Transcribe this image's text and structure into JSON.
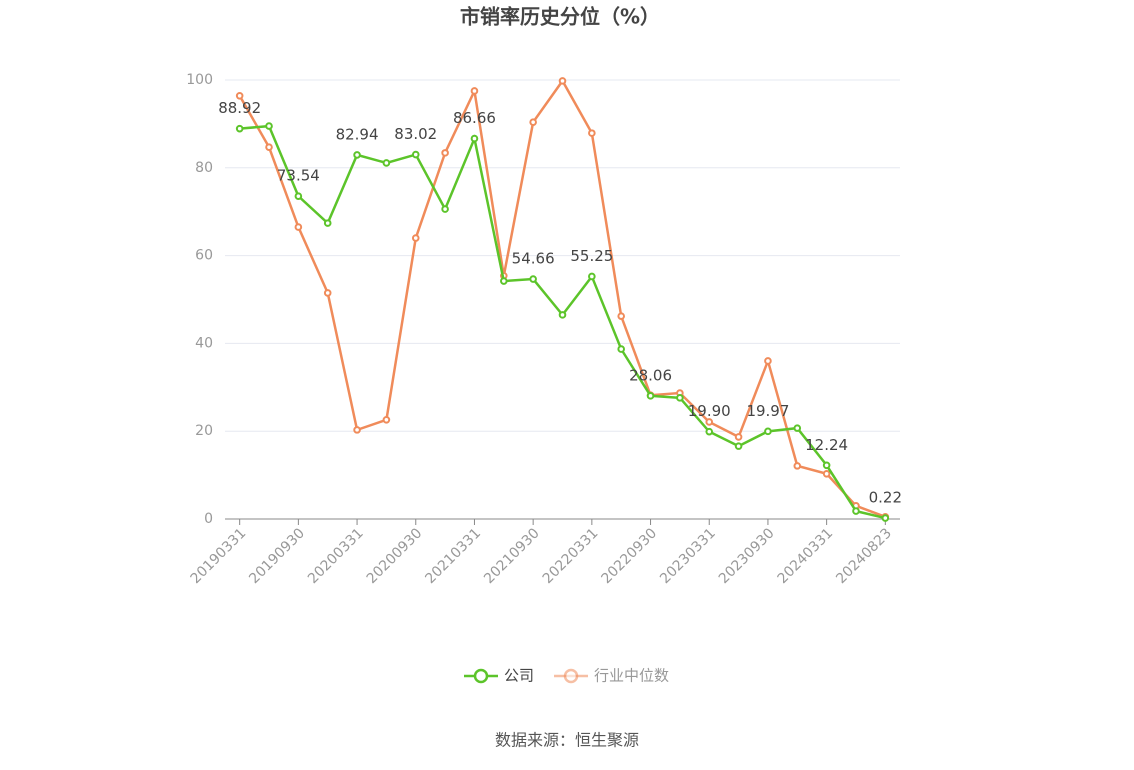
{
  "chart_data": {
    "type": "line",
    "title": "市销率历史分位（%）",
    "categories": [
      "20190331",
      null,
      "20190930",
      null,
      "20200331",
      null,
      "20200930",
      null,
      "20210331",
      null,
      "20210930",
      null,
      "20220331",
      null,
      "20220930",
      null,
      "20230331",
      null,
      "20230930",
      null,
      "20240331",
      null,
      "20240823"
    ],
    "series": [
      {
        "name": "公司",
        "color": "#5cc42a",
        "values": [
          88.92,
          89.5,
          73.54,
          67.4,
          82.94,
          81.1,
          83.02,
          70.6,
          86.66,
          54.2,
          54.66,
          46.5,
          55.25,
          38.7,
          28.06,
          27.6,
          19.9,
          16.6,
          19.97,
          20.7,
          12.24,
          1.8,
          0.22
        ],
        "value_labels": [
          "88.92",
          null,
          "73.54",
          null,
          "82.94",
          null,
          "83.02",
          null,
          "86.66",
          null,
          "54.66",
          null,
          "55.25",
          null,
          "28.06",
          null,
          "19.90",
          null,
          "19.97",
          null,
          "12.24",
          null,
          "0.22"
        ]
      },
      {
        "name": "行业中位数",
        "color": "#f08b5a",
        "values": [
          96.4,
          84.7,
          66.5,
          51.5,
          20.3,
          22.6,
          64.0,
          83.4,
          97.5,
          55.4,
          90.4,
          99.8,
          87.9,
          46.2,
          28.2,
          28.7,
          22.1,
          18.7,
          36.0,
          12.1,
          10.3,
          3.0,
          0.5
        ]
      }
    ],
    "ylim": [
      0,
      100
    ],
    "yticks": [
      0,
      20,
      40,
      60,
      80,
      100
    ],
    "grid": true,
    "source": "数据来源：恒生聚源"
  }
}
